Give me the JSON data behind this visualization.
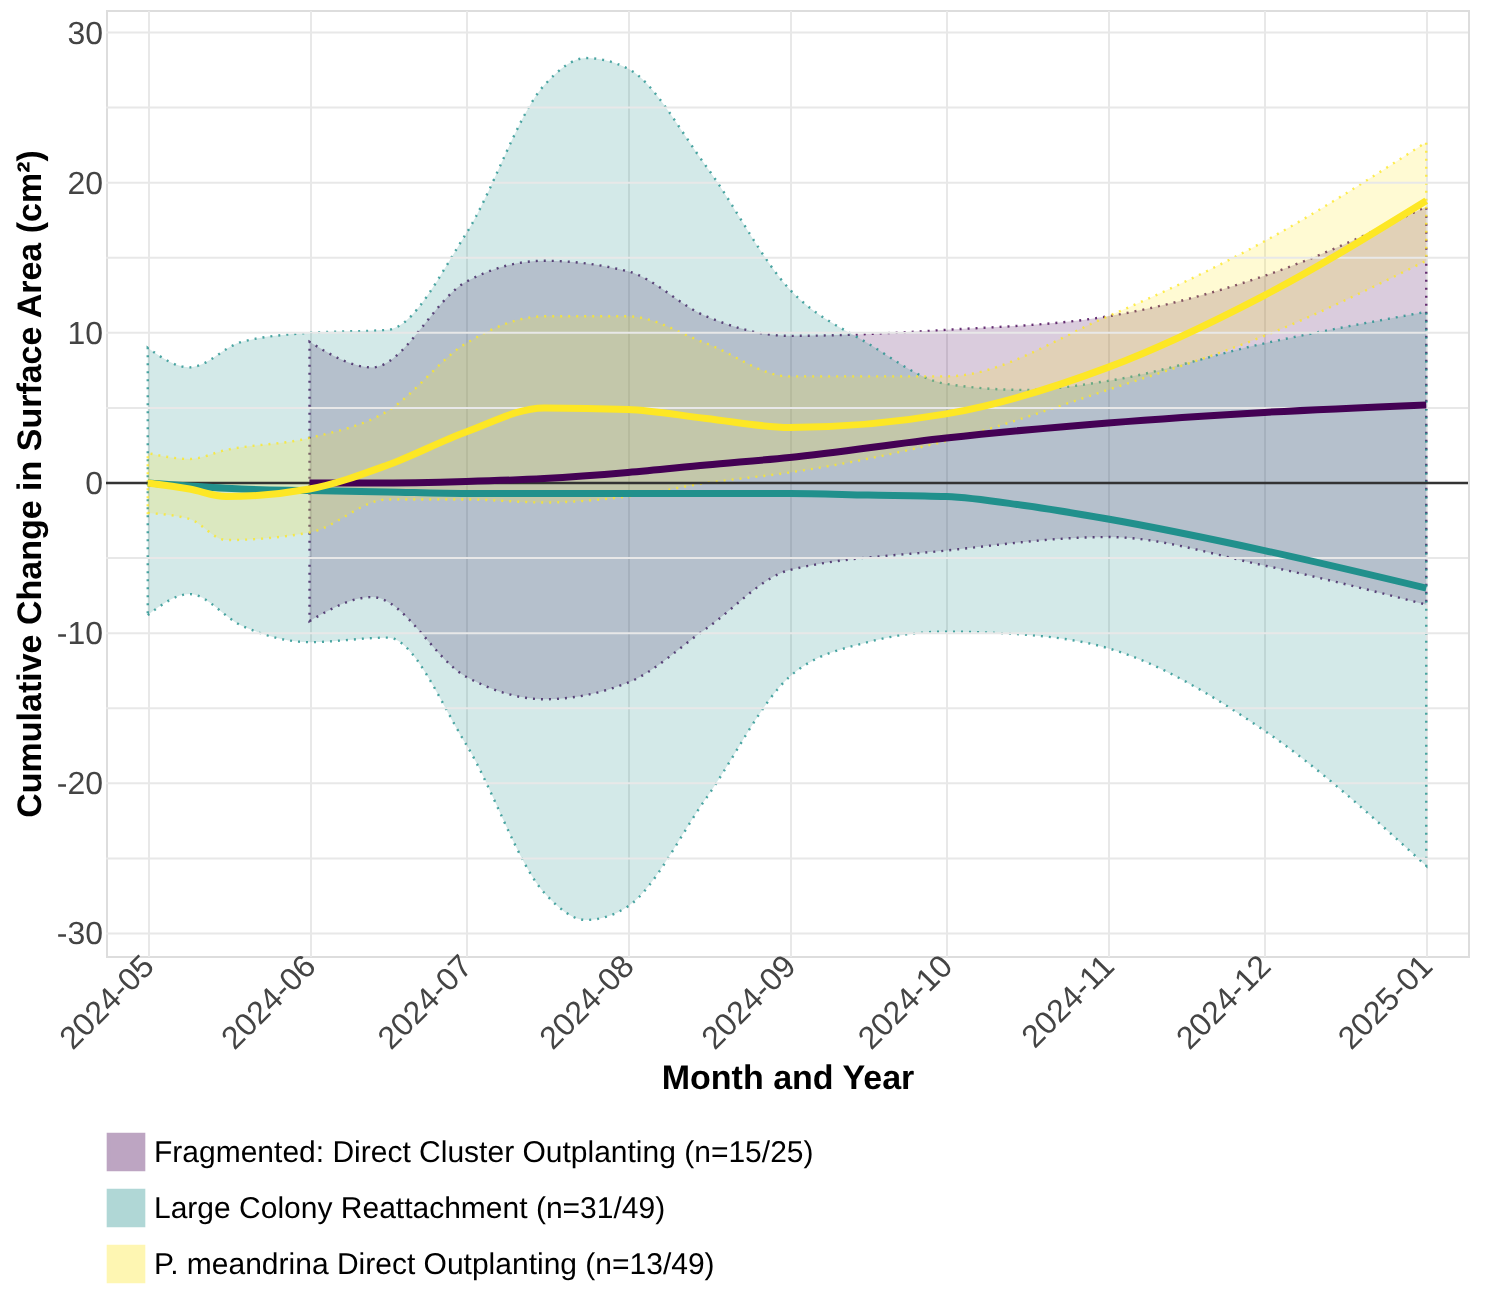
{
  "chart_data": {
    "type": "line",
    "xlabel": "Month and Year",
    "ylabel": "Cumulative Change in Surface Area (cm²)",
    "xlim": [
      "2024-04-23",
      "2025-01-09"
    ],
    "xticks": [
      {
        "value": "2024-05-01",
        "label": "2024-05"
      },
      {
        "value": "2024-06-01",
        "label": "2024-06"
      },
      {
        "value": "2024-07-01",
        "label": "2024-07"
      },
      {
        "value": "2024-08-01",
        "label": "2024-08"
      },
      {
        "value": "2024-09-01",
        "label": "2024-09"
      },
      {
        "value": "2024-10-01",
        "label": "2024-10"
      },
      {
        "value": "2024-11-01",
        "label": "2024-11"
      },
      {
        "value": "2024-12-01",
        "label": "2024-12"
      },
      {
        "value": "2025-01-01",
        "label": "2025-01"
      }
    ],
    "ylim": [
      -31.5,
      31.5
    ],
    "yticks": [
      -30,
      {
        "value": -25,
        "label": null
      },
      -20,
      {
        "value": -15,
        "label": null
      },
      -10,
      {
        "value": -5,
        "label": null
      },
      0,
      {
        "value": 5,
        "label": null
      },
      10,
      {
        "value": 15,
        "label": null
      },
      20,
      {
        "value": 25,
        "label": null
      },
      30
    ],
    "grid": true,
    "legend": "bottom",
    "line_style": "solid",
    "marker": "none",
    "ref_lines": [
      {
        "axis": "y",
        "value": 0,
        "color": "#333333"
      }
    ],
    "series": [
      {
        "name": "Fragmented: Direct Cluster Outplanting (n=15/25)",
        "color": "#440154",
        "x": [
          "2024-06-01",
          "2024-06-13",
          "2024-07-01",
          "2024-07-16",
          "2024-08-01",
          "2024-08-16",
          "2024-09-01",
          "2024-10-01",
          "2024-11-01",
          "2024-12-01",
          "2025-01-01"
        ],
        "values": [
          0,
          0,
          0.1,
          0.3,
          0.7,
          1.2,
          1.7,
          3.0,
          4.0,
          4.7,
          5.2
        ],
        "lower": [
          -9.2,
          -7.6,
          -12.9,
          -14.4,
          -13.3,
          -9.7,
          -5.8,
          -4.5,
          -3.6,
          -5.5,
          -8.1
        ],
        "upper": [
          9.4,
          7.7,
          13.4,
          14.8,
          14.1,
          11.1,
          9.8,
          10.2,
          11.1,
          13.8,
          18.4
        ]
      },
      {
        "name": "Large Colony Reattachment (n=31/49)",
        "color": "#21908c",
        "x": [
          "2024-05-01",
          "2024-05-09",
          "2024-05-19",
          "2024-06-01",
          "2024-06-16",
          "2024-07-01",
          "2024-07-16",
          "2024-07-24",
          "2024-08-01",
          "2024-08-16",
          "2024-09-01",
          "2024-09-16",
          "2024-10-01",
          "2024-10-16",
          "2024-11-01",
          "2024-12-01",
          "2025-01-01"
        ],
        "values": [
          0,
          -0.2,
          -0.4,
          -0.5,
          -0.6,
          -0.7,
          -0.7,
          -0.7,
          -0.7,
          -0.7,
          -0.7,
          -0.8,
          -0.9,
          -1.5,
          -2.4,
          -4.5,
          -7.0
        ],
        "lower": [
          -8.8,
          -7.4,
          -9.5,
          -10.6,
          -10.3,
          -17.4,
          -27.3,
          -29.1,
          -28.2,
          -21.0,
          -12.9,
          -10.6,
          -9.9,
          -10.1,
          -11.0,
          -16.5,
          -25.5
        ],
        "upper": [
          9.0,
          7.7,
          9.4,
          10.0,
          10.2,
          16.6,
          26.5,
          28.3,
          27.6,
          21.1,
          12.9,
          9.3,
          6.6,
          6.2,
          6.8,
          9.3,
          11.4
        ]
      },
      {
        "name": "P. meandrina Direct Outplanting (n=13/49)",
        "color": "#fde725",
        "x": [
          "2024-05-01",
          "2024-05-09",
          "2024-05-16",
          "2024-06-01",
          "2024-06-16",
          "2024-07-01",
          "2024-07-16",
          "2024-08-01",
          "2024-08-16",
          "2024-09-01",
          "2024-10-01",
          "2024-11-01",
          "2024-12-01",
          "2025-01-01"
        ],
        "values": [
          0,
          -0.4,
          -0.9,
          -0.4,
          1.2,
          3.4,
          5.0,
          4.9,
          4.3,
          3.7,
          4.6,
          7.7,
          12.5,
          18.8
        ],
        "lower": [
          -2.0,
          -2.4,
          -3.8,
          -3.3,
          -1.1,
          -1.1,
          -1.3,
          -0.9,
          0,
          0.7,
          2.8,
          6.2,
          9.8,
          14.8
        ],
        "upper": [
          2.0,
          1.6,
          2.2,
          3.0,
          4.8,
          9.3,
          11.1,
          11.1,
          9.3,
          7.1,
          7.1,
          11.1,
          16.1,
          22.7
        ]
      }
    ]
  }
}
